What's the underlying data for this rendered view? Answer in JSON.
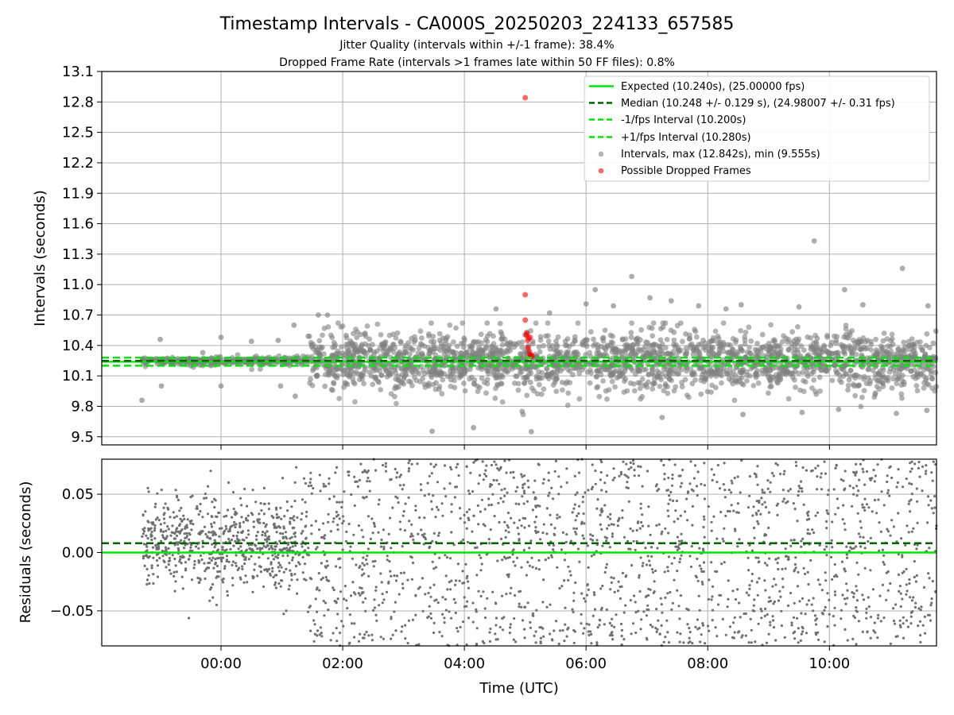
{
  "chart_data": [
    {
      "type": "scatter",
      "title": "Timestamp Intervals - CA000S_20250203_224133_657585",
      "subtitle_lines": [
        "Jitter Quality (intervals within +/-1 frame): 38.4%",
        "Dropped Frame Rate (intervals >1 frames late within 50 FF files): 0.8%"
      ],
      "xlabel": "",
      "ylabel": "Intervals (seconds)",
      "xlim_hours": [
        -1.96,
        11.76
      ],
      "ylim": [
        9.42,
        13.1
      ],
      "yticks": [
        "9.5",
        "9.8",
        "10.1",
        "10.4",
        "10.7",
        "11.0",
        "11.3",
        "11.6",
        "11.9",
        "12.2",
        "12.5",
        "12.8",
        "13.1"
      ],
      "grid": true,
      "legend_position": "top-right",
      "series": [
        {
          "name": "Expected (10.240s), (25.00000 fps)",
          "kind": "hline",
          "y": 10.24,
          "color": "#00e600",
          "style": "solid"
        },
        {
          "name": "Median (10.248 +/- 0.129 s), (24.98007 +/- 0.31 fps)",
          "kind": "hline",
          "y": 10.248,
          "color": "#006400",
          "style": "dashed"
        },
        {
          "name": "-1/fps Interval (10.200s)",
          "kind": "hline",
          "y": 10.2,
          "color": "#00e600",
          "style": "dashed"
        },
        {
          "name": "+1/fps Interval (10.280s)",
          "kind": "hline",
          "y": 10.28,
          "color": "#00e600",
          "style": "dashed"
        },
        {
          "name": "Intervals, max (12.842s), min (9.555s)",
          "kind": "scatter",
          "color": "#808080",
          "generated_cloud": {
            "segments": [
              {
                "x_range": [
                  -1.3,
                  1.42
                ],
                "count": 300,
                "mean": 10.248,
                "sd": 0.02
              },
              {
                "x_range": [
                  1.42,
                  11.76
                ],
                "count": 2300,
                "mean": 10.248,
                "sd": 0.14
              }
            ]
          },
          "outliers": [
            [
              -1.3,
              9.86
            ],
            [
              -1.0,
              10.46
            ],
            [
              -0.98,
              10.0
            ],
            [
              -0.5,
              10.2
            ],
            [
              -0.3,
              10.33
            ],
            [
              0.0,
              10.48
            ],
            [
              0.0,
              10.0
            ],
            [
              0.5,
              10.44
            ],
            [
              0.94,
              10.45
            ],
            [
              0.98,
              10.0
            ],
            [
              1.2,
              10.6
            ],
            [
              1.22,
              9.9
            ],
            [
              1.6,
              10.7
            ],
            [
              1.75,
              10.7
            ],
            [
              3.47,
              9.555
            ],
            [
              4.15,
              9.59
            ],
            [
              4.52,
              10.76
            ],
            [
              4.95,
              9.75
            ],
            [
              5.1,
              9.55
            ],
            [
              5.4,
              10.72
            ],
            [
              6.0,
              10.81
            ],
            [
              6.15,
              10.95
            ],
            [
              6.45,
              10.79
            ],
            [
              6.75,
              11.08
            ],
            [
              7.05,
              10.87
            ],
            [
              7.4,
              10.84
            ],
            [
              7.85,
              10.79
            ],
            [
              8.3,
              10.76
            ],
            [
              8.55,
              10.8
            ],
            [
              9.5,
              10.78
            ],
            [
              9.75,
              11.43
            ],
            [
              10.25,
              10.95
            ],
            [
              10.55,
              10.8
            ],
            [
              11.2,
              11.16
            ],
            [
              11.62,
              10.79
            ],
            [
              7.25,
              9.69
            ],
            [
              8.58,
              9.72
            ],
            [
              9.55,
              9.74
            ],
            [
              10.15,
              9.77
            ],
            [
              11.1,
              9.73
            ],
            [
              11.6,
              9.76
            ]
          ]
        },
        {
          "name": "Possible Dropped Frames",
          "kind": "scatter",
          "color": "#ff0000",
          "points": [
            [
              5.0,
              12.842
            ],
            [
              5.0,
              10.9
            ],
            [
              5.0,
              10.65
            ],
            [
              5.03,
              10.52
            ],
            [
              5.02,
              10.5
            ],
            [
              5.06,
              10.47
            ],
            [
              5.08,
              10.48
            ],
            [
              5.04,
              10.45
            ],
            [
              5.05,
              10.38
            ],
            [
              5.07,
              10.34
            ],
            [
              5.08,
              10.31
            ],
            [
              5.09,
              10.3
            ],
            [
              5.1,
              10.29
            ],
            [
              5.11,
              10.3
            ]
          ]
        }
      ]
    },
    {
      "type": "scatter",
      "xlabel": "Time (UTC)",
      "ylabel": "Residuals (seconds)",
      "xlim_hours": [
        -1.96,
        11.76
      ],
      "ylim": [
        -0.08,
        0.08
      ],
      "yticks": [
        "−0.05",
        "0.00",
        "0.05"
      ],
      "xticks": [
        "00:00",
        "02:00",
        "04:00",
        "06:00",
        "08:00",
        "10:00"
      ],
      "xtick_hours": [
        0,
        2,
        4,
        6,
        8,
        10
      ],
      "grid": true,
      "series": [
        {
          "kind": "hline",
          "y": 0.0,
          "color": "#00e600",
          "style": "solid"
        },
        {
          "kind": "hline",
          "y": 0.008,
          "color": "#006400",
          "style": "dashed"
        },
        {
          "kind": "scatter",
          "color": "#808080",
          "generated_cloud": {
            "segments": [
              {
                "x_range": [
                  -1.3,
                  1.42
                ],
                "count": 700,
                "mean": 0.008,
                "sd": 0.02
              },
              {
                "x_range": [
                  1.42,
                  11.76
                ],
                "count": 1800,
                "mean": 0.005,
                "sd": 0.14
              }
            ]
          }
        }
      ]
    }
  ]
}
